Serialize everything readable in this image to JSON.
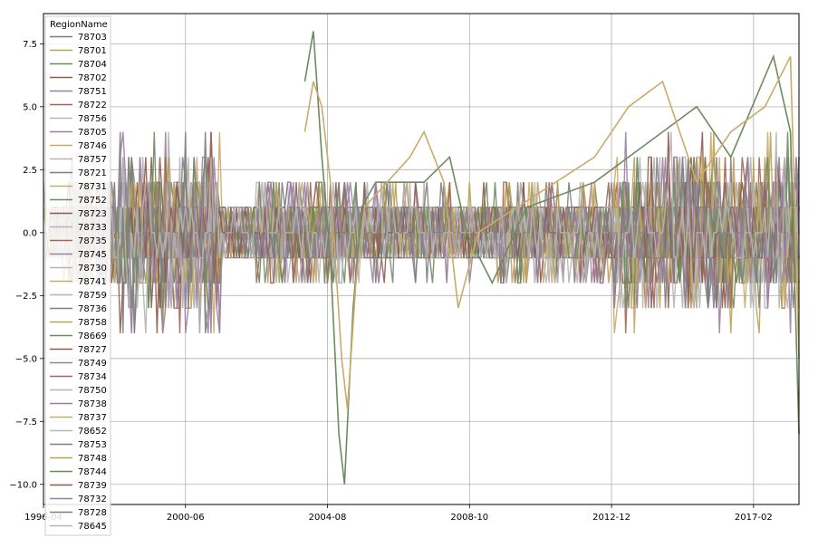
{
  "chart_data": {
    "type": "line",
    "legend": {
      "title": "RegionName",
      "placement": "upper-left",
      "entries": [
        {
          "name": "78703",
          "color": "#7f7f7f"
        },
        {
          "name": "78701",
          "color": "#b9a256"
        },
        {
          "name": "78704",
          "color": "#6e8b5e"
        },
        {
          "name": "78702",
          "color": "#8c5d4f"
        },
        {
          "name": "78751",
          "color": "#9a7fa3"
        },
        {
          "name": "78722",
          "color": "#a0675a"
        },
        {
          "name": "78756",
          "color": "#b5b5b5"
        },
        {
          "name": "78705",
          "color": "#9a7fa3"
        },
        {
          "name": "78746",
          "color": "#c9ab6a"
        },
        {
          "name": "78757",
          "color": "#b5b5b5"
        },
        {
          "name": "78721",
          "color": "#7f7f7f"
        },
        {
          "name": "78731",
          "color": "#c9ab6a"
        },
        {
          "name": "78752",
          "color": "#6e8b5e"
        },
        {
          "name": "78723",
          "color": "#8c5d4f"
        },
        {
          "name": "78733",
          "color": "#b5b5b5"
        },
        {
          "name": "78735",
          "color": "#a0675a"
        },
        {
          "name": "78745",
          "color": "#9a7fa3"
        },
        {
          "name": "78730",
          "color": "#b5b5b5"
        },
        {
          "name": "78741",
          "color": "#c9ab6a"
        },
        {
          "name": "78759",
          "color": "#b5b5b5"
        },
        {
          "name": "78736",
          "color": "#7f7f7f"
        },
        {
          "name": "78758",
          "color": "#b9a256"
        },
        {
          "name": "78669",
          "color": "#6e8b5e"
        },
        {
          "name": "78727",
          "color": "#8c5d4f"
        },
        {
          "name": "78749",
          "color": "#9a7fa3"
        },
        {
          "name": "78734",
          "color": "#a0675a"
        },
        {
          "name": "78750",
          "color": "#b5b5b5"
        },
        {
          "name": "78738",
          "color": "#9a7fa3"
        },
        {
          "name": "78737",
          "color": "#c9ab6a"
        },
        {
          "name": "78652",
          "color": "#b5b5b5"
        },
        {
          "name": "78753",
          "color": "#7f7f7f"
        },
        {
          "name": "78748",
          "color": "#b9a256"
        },
        {
          "name": "78744",
          "color": "#6e8b5e"
        },
        {
          "name": "78739",
          "color": "#8c5d4f"
        },
        {
          "name": "78732",
          "color": "#9a7fa3"
        },
        {
          "name": "78728",
          "color": "#7f7f7f"
        },
        {
          "name": "78645",
          "color": "#b5b5b5"
        }
      ]
    },
    "x_axis": {
      "type": "date",
      "range": [
        "1996-04",
        "2018-06"
      ],
      "ticks": [
        "1996-04",
        "2000-06",
        "2004-08",
        "2008-10",
        "2012-12",
        "2017-02"
      ]
    },
    "y_axis": {
      "range": [
        -10.8,
        8.7
      ],
      "ticks": [
        -10.0,
        -7.5,
        -5.0,
        -2.5,
        0.0,
        2.5,
        5.0,
        7.5
      ],
      "tick_labels": [
        "−10.0",
        "−7.5",
        "−5.0",
        "−2.5",
        "0.0",
        "2.5",
        "5.0",
        "7.5"
      ]
    },
    "grid": true,
    "series_note_values": "Monthly changes per region (approximate readings); each series value list is aligned to monthly dates from 1996-04",
    "series": [
      {
        "name": "78703",
        "color": "#6e8b5e",
        "highlight": "spike",
        "points": [
          [
            "2003-12",
            6
          ],
          [
            "2004-03",
            8
          ],
          [
            "2004-06",
            3
          ],
          [
            "2004-09",
            -1
          ],
          [
            "2004-12",
            -8
          ],
          [
            "2005-02",
            -10
          ],
          [
            "2005-05",
            -3
          ],
          [
            "2005-08",
            1
          ],
          [
            "2006-01",
            2
          ],
          [
            "2007-06",
            2
          ],
          [
            "2008-03",
            3
          ],
          [
            "2008-09",
            0
          ],
          [
            "2009-06",
            -2
          ],
          [
            "2010-06",
            1
          ],
          [
            "2012-06",
            2
          ],
          [
            "2014-06",
            4
          ],
          [
            "2015-06",
            5
          ],
          [
            "2016-06",
            3
          ],
          [
            "2017-09",
            7
          ],
          [
            "2018-03",
            4
          ],
          [
            "2018-06",
            -8
          ]
        ]
      },
      {
        "name": "78701",
        "color": "#c9ab6a",
        "highlight": "spike",
        "points": [
          [
            "2003-12",
            4
          ],
          [
            "2004-03",
            6
          ],
          [
            "2004-06",
            5
          ],
          [
            "2004-09",
            2
          ],
          [
            "2005-01",
            -5
          ],
          [
            "2005-03",
            -7
          ],
          [
            "2005-06",
            -2
          ],
          [
            "2005-09",
            1
          ],
          [
            "2007-01",
            3
          ],
          [
            "2007-06",
            4
          ],
          [
            "2008-01",
            2
          ],
          [
            "2008-06",
            -3
          ],
          [
            "2009-01",
            0
          ],
          [
            "2012-06",
            3
          ],
          [
            "2013-06",
            5
          ],
          [
            "2014-06",
            6
          ],
          [
            "2015-06",
            2
          ],
          [
            "2016-06",
            4
          ],
          [
            "2017-06",
            5
          ],
          [
            "2018-03",
            7
          ],
          [
            "2018-06",
            -5
          ]
        ]
      }
    ]
  }
}
